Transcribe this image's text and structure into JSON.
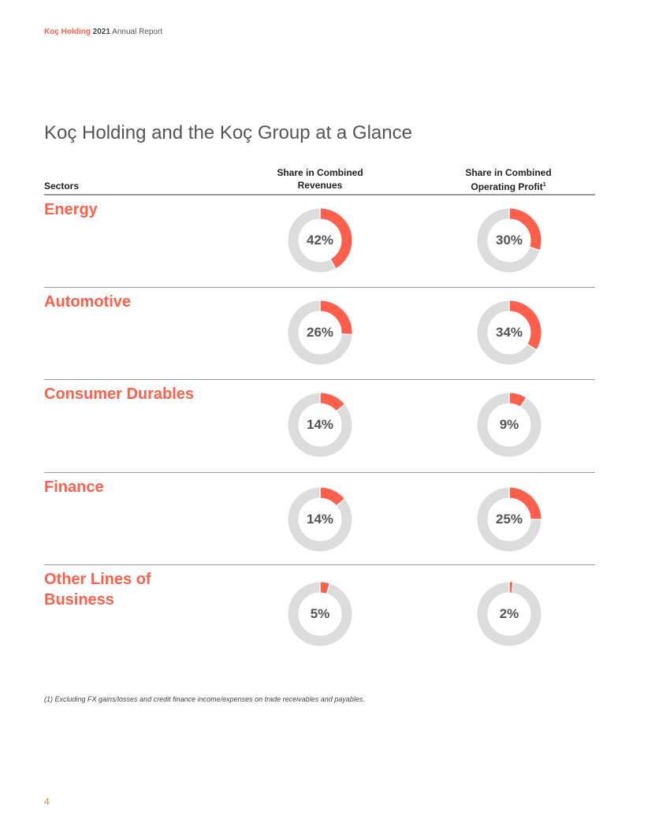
{
  "header": {
    "brand": "Koç Holding",
    "year": "2021",
    "report": "Annual Report"
  },
  "title": "Koç Holding and the Koç Group at a Glance",
  "columns": {
    "sectors": "Sectors",
    "revenues": "Share in Combined Revenues",
    "profit": "Share in Combined Operating Profit",
    "profit_footnote_mark": "1"
  },
  "colors": {
    "accent": "#ff5f4b",
    "track": "#dcdcdc"
  },
  "chart_data": {
    "type": "pie",
    "variant": "donut",
    "rows": [
      {
        "sector": "Energy",
        "revenues": 42,
        "profit": 30,
        "revenues_label": "42%",
        "profit_label": "30%"
      },
      {
        "sector": "Automotive",
        "revenues": 26,
        "profit": 34,
        "revenues_label": "26%",
        "profit_label": "34%"
      },
      {
        "sector": "Consumer Durables",
        "revenues": 14,
        "profit": 9,
        "revenues_label": "14%",
        "profit_label": "9%"
      },
      {
        "sector": "Finance",
        "revenues": 14,
        "profit": 25,
        "revenues_label": "14%",
        "profit_label": "25%"
      },
      {
        "sector": "Other Lines of Business",
        "revenues": 5,
        "profit": 2,
        "revenues_label": "5%",
        "profit_label": "2%"
      }
    ]
  },
  "footnote": "(1) Excluding FX gains/losses and credit finance income/expenses on trade receivables and payables.",
  "page_number": "4"
}
